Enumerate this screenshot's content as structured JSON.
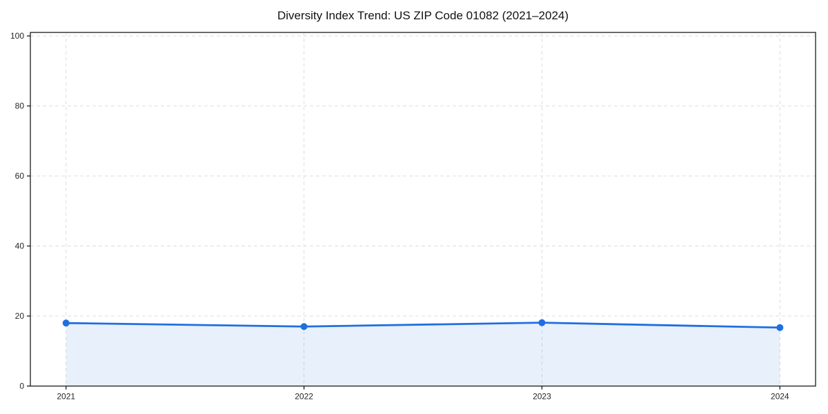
{
  "page": {
    "background": "#ffffff"
  },
  "chart_data": {
    "type": "line",
    "title": "Diversity Index Trend: US ZIP Code 01082 (2021–2024)",
    "x": [
      2021,
      2022,
      2023,
      2024
    ],
    "xticks": [
      2021,
      2022,
      2023,
      2024
    ],
    "yticks": [
      0,
      20,
      40,
      60,
      80,
      100
    ],
    "series": [
      {
        "name": "Diversity Index",
        "values": [
          18.0,
          17.0,
          18.1,
          16.7
        ]
      }
    ],
    "xlabel": "",
    "ylabel": "",
    "xlim": [
      2020.85,
      2024.15
    ],
    "ylim": [
      0,
      101
    ],
    "grid": true,
    "grid_style": "dashed",
    "legend": false,
    "area_fill": true,
    "colors": {
      "line": "#1f6fe0",
      "marker": "#1f6fe0",
      "fill": "#1f6fe0",
      "fill_opacity": 0.1,
      "grid": "#dddddd",
      "axis": "#1a1a1a",
      "tick_label": "#262626",
      "title": "#111111"
    }
  }
}
